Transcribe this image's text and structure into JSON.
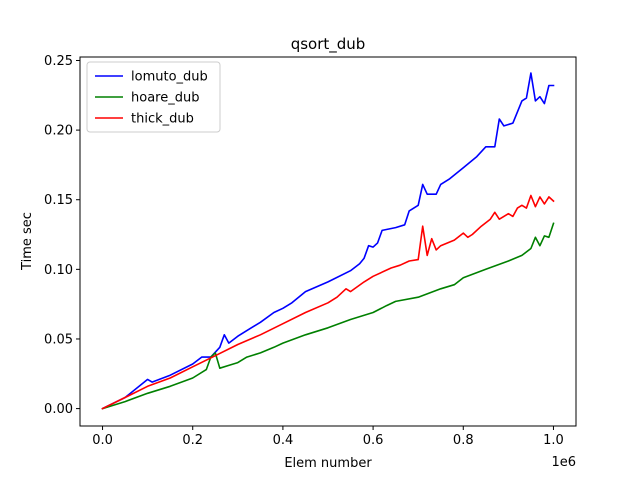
{
  "chart_data": {
    "type": "line",
    "title": "qsort_dub",
    "xlabel": "Elem number",
    "ylabel": "Time sec",
    "x_offset_text": "1e6",
    "xlim": [
      -0.05,
      1.05
    ],
    "ylim": [
      -0.0125,
      0.2525
    ],
    "xticks": [
      0.0,
      0.2,
      0.4,
      0.6,
      0.8,
      1.0
    ],
    "xtick_labels": [
      "0.0",
      "0.2",
      "0.4",
      "0.6",
      "0.8",
      "1.0"
    ],
    "yticks": [
      0.0,
      0.05,
      0.1,
      0.15,
      0.2,
      0.25
    ],
    "ytick_labels": [
      "0.00",
      "0.05",
      "0.10",
      "0.15",
      "0.20",
      "0.25"
    ],
    "grid": false,
    "legend_position": "upper-left",
    "series": [
      {
        "name": "lomuto_dub",
        "color": "#0000ff",
        "points": [
          [
            0.0,
            0.0
          ],
          [
            0.05,
            0.008
          ],
          [
            0.1,
            0.021
          ],
          [
            0.11,
            0.019
          ],
          [
            0.15,
            0.024
          ],
          [
            0.2,
            0.032
          ],
          [
            0.22,
            0.037
          ],
          [
            0.24,
            0.037
          ],
          [
            0.26,
            0.044
          ],
          [
            0.27,
            0.053
          ],
          [
            0.28,
            0.047
          ],
          [
            0.3,
            0.052
          ],
          [
            0.33,
            0.058
          ],
          [
            0.35,
            0.062
          ],
          [
            0.38,
            0.069
          ],
          [
            0.4,
            0.072
          ],
          [
            0.42,
            0.076
          ],
          [
            0.45,
            0.084
          ],
          [
            0.5,
            0.091
          ],
          [
            0.55,
            0.099
          ],
          [
            0.57,
            0.104
          ],
          [
            0.58,
            0.108
          ],
          [
            0.59,
            0.117
          ],
          [
            0.6,
            0.116
          ],
          [
            0.61,
            0.119
          ],
          [
            0.62,
            0.128
          ],
          [
            0.65,
            0.13
          ],
          [
            0.67,
            0.132
          ],
          [
            0.68,
            0.142
          ],
          [
            0.7,
            0.146
          ],
          [
            0.71,
            0.161
          ],
          [
            0.72,
            0.154
          ],
          [
            0.74,
            0.154
          ],
          [
            0.75,
            0.161
          ],
          [
            0.77,
            0.165
          ],
          [
            0.8,
            0.173
          ],
          [
            0.83,
            0.181
          ],
          [
            0.85,
            0.188
          ],
          [
            0.87,
            0.188
          ],
          [
            0.88,
            0.208
          ],
          [
            0.89,
            0.203
          ],
          [
            0.91,
            0.205
          ],
          [
            0.93,
            0.221
          ],
          [
            0.94,
            0.223
          ],
          [
            0.95,
            0.241
          ],
          [
            0.96,
            0.221
          ],
          [
            0.97,
            0.224
          ],
          [
            0.98,
            0.219
          ],
          [
            0.99,
            0.232
          ],
          [
            1.0,
            0.232
          ]
        ]
      },
      {
        "name": "hoare_dub",
        "color": "#008000",
        "points": [
          [
            0.0,
            0.0
          ],
          [
            0.05,
            0.005
          ],
          [
            0.1,
            0.011
          ],
          [
            0.15,
            0.016
          ],
          [
            0.2,
            0.022
          ],
          [
            0.23,
            0.028
          ],
          [
            0.24,
            0.037
          ],
          [
            0.25,
            0.04
          ],
          [
            0.26,
            0.029
          ],
          [
            0.28,
            0.031
          ],
          [
            0.3,
            0.033
          ],
          [
            0.32,
            0.037
          ],
          [
            0.35,
            0.04
          ],
          [
            0.38,
            0.044
          ],
          [
            0.4,
            0.047
          ],
          [
            0.45,
            0.053
          ],
          [
            0.5,
            0.058
          ],
          [
            0.55,
            0.064
          ],
          [
            0.6,
            0.069
          ],
          [
            0.63,
            0.074
          ],
          [
            0.65,
            0.077
          ],
          [
            0.7,
            0.08
          ],
          [
            0.75,
            0.086
          ],
          [
            0.78,
            0.089
          ],
          [
            0.8,
            0.094
          ],
          [
            0.85,
            0.1
          ],
          [
            0.9,
            0.106
          ],
          [
            0.93,
            0.11
          ],
          [
            0.95,
            0.115
          ],
          [
            0.96,
            0.123
          ],
          [
            0.97,
            0.117
          ],
          [
            0.98,
            0.124
          ],
          [
            0.99,
            0.123
          ],
          [
            1.0,
            0.133
          ]
        ]
      },
      {
        "name": "thick_dub",
        "color": "#ff0000",
        "points": [
          [
            0.0,
            0.0
          ],
          [
            0.05,
            0.008
          ],
          [
            0.1,
            0.016
          ],
          [
            0.15,
            0.022
          ],
          [
            0.2,
            0.03
          ],
          [
            0.25,
            0.038
          ],
          [
            0.3,
            0.046
          ],
          [
            0.35,
            0.053
          ],
          [
            0.4,
            0.061
          ],
          [
            0.45,
            0.069
          ],
          [
            0.5,
            0.076
          ],
          [
            0.52,
            0.08
          ],
          [
            0.54,
            0.086
          ],
          [
            0.55,
            0.084
          ],
          [
            0.58,
            0.091
          ],
          [
            0.6,
            0.095
          ],
          [
            0.64,
            0.101
          ],
          [
            0.66,
            0.103
          ],
          [
            0.68,
            0.106
          ],
          [
            0.7,
            0.107
          ],
          [
            0.71,
            0.131
          ],
          [
            0.72,
            0.11
          ],
          [
            0.73,
            0.122
          ],
          [
            0.74,
            0.114
          ],
          [
            0.75,
            0.117
          ],
          [
            0.78,
            0.121
          ],
          [
            0.8,
            0.126
          ],
          [
            0.81,
            0.123
          ],
          [
            0.82,
            0.125
          ],
          [
            0.84,
            0.131
          ],
          [
            0.86,
            0.136
          ],
          [
            0.87,
            0.141
          ],
          [
            0.88,
            0.136
          ],
          [
            0.9,
            0.14
          ],
          [
            0.91,
            0.138
          ],
          [
            0.92,
            0.144
          ],
          [
            0.93,
            0.146
          ],
          [
            0.94,
            0.144
          ],
          [
            0.95,
            0.153
          ],
          [
            0.96,
            0.145
          ],
          [
            0.97,
            0.152
          ],
          [
            0.98,
            0.147
          ],
          [
            0.99,
            0.152
          ],
          [
            1.0,
            0.149
          ]
        ]
      }
    ]
  }
}
